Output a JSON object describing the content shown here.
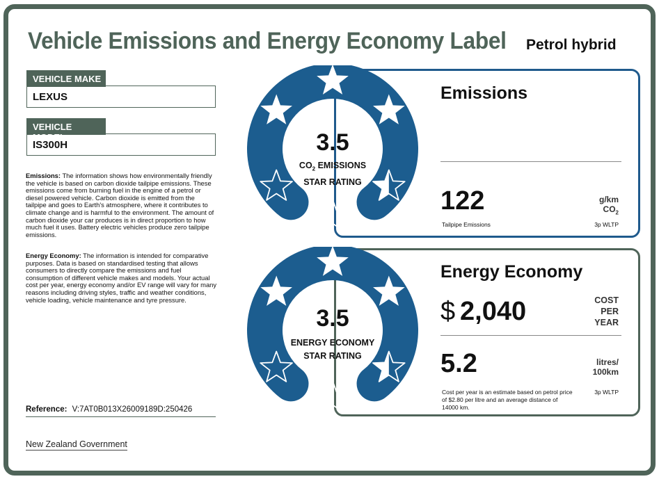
{
  "title": "Vehicle Emissions and Energy Economy Label",
  "fuel_type": "Petrol hybrid",
  "vehicle_make": {
    "label": "VEHICLE MAKE",
    "value": "LEXUS"
  },
  "vehicle_model": {
    "label": "VEHICLE MODEL",
    "value": "IS300H"
  },
  "emissions_info": {
    "heading": "Emissions:",
    "text": "The information shows how environmentally friendly the vehicle is based on carbon dioxide tailpipe emissions. These emissions come from burning fuel in the engine of a petrol or diesel powered vehicle. Carbon dioxide is emitted from the tailpipe and goes to Earth's atmosphere, where it contributes to climate change and is harmful to the environment. The amount of carbon dioxide your car produces is in direct proportion to how much fuel it uses. Battery electric vehicles produce zero tailpipe emissions."
  },
  "economy_info": {
    "heading": "Energy Economy:",
    "text": "The information is intended for comparative purposes. Data is based on standardised testing that allows consumers to directly compare the emissions and fuel consumption of different vehicle makes and models. Your actual cost per year, energy economy and/or EV range will vary for many reasons including driving styles, traffic and weather conditions, vehicle loading, vehicle maintenance and tyre pressure."
  },
  "reference": {
    "label": "Reference:",
    "value": "V:7AT0B013X26009189D:250426"
  },
  "government": "New Zealand Government",
  "emissions_rating": {
    "stars": "3.5",
    "star_fill": 3.5,
    "label_co": "CO",
    "label_sub": "2",
    "label_rest": " EMISSIONS",
    "label_line2": "STAR RATING",
    "color": "#1c5d8f"
  },
  "emissions_panel": {
    "title": "Emissions",
    "value": "122",
    "unit_line1": "g/km",
    "unit_co": "CO",
    "unit_sub": "2",
    "caption": "Tailpipe Emissions",
    "standard": "3p WLTP"
  },
  "economy_rating": {
    "stars": "3.5",
    "star_fill": 3.5,
    "label_line1": "ENERGY ECONOMY",
    "label_line2": "STAR RATING",
    "color": "#1c5d8f"
  },
  "economy_panel": {
    "title": "Energy Economy",
    "currency": "$",
    "cost": "2,040",
    "cost_unit_1": "COST",
    "cost_unit_2": "PER",
    "cost_unit_3": "YEAR",
    "consumption": "5.2",
    "consumption_unit_1": "litres/",
    "consumption_unit_2": "100km",
    "note_line1": "Cost per year is an estimate based on petrol price",
    "note_line2": "of  $2.80 per litre and an average distance of",
    "note_line3": "14000 km.",
    "standard": "3p WLTP"
  },
  "colors": {
    "frame": "#4f6459",
    "blue": "#1c5d8f",
    "panel_blue": "#1f5a8c"
  }
}
